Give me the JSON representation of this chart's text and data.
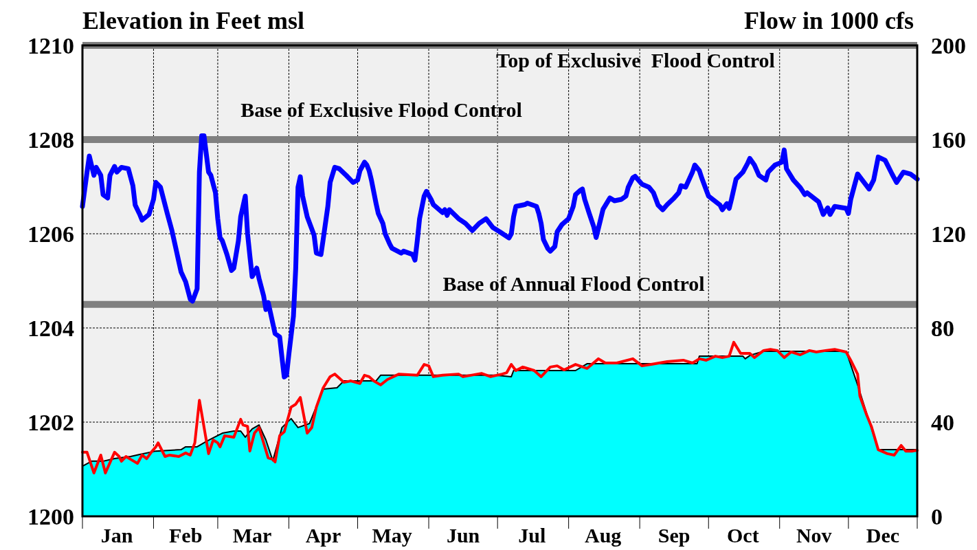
{
  "chart_data": {
    "type": "line",
    "ylabel": "Elevation in Feet msl",
    "y2label": "Flow in 1000 cfs",
    "xlim": [
      "--01-01",
      "--12-31"
    ],
    "xticks": [
      {
        "value": "--01-01",
        "label": null
      },
      {
        "value": "--01-16",
        "label": "Jan"
      },
      {
        "value": "--02-01",
        "label": null
      },
      {
        "value": "--02-15",
        "label": "Feb"
      },
      {
        "value": "--03-01",
        "label": null
      },
      {
        "value": "--03-16",
        "label": "Mar"
      },
      {
        "value": "--04-01",
        "label": null
      },
      {
        "value": "--04-16",
        "label": "Apr"
      },
      {
        "value": "--05-01",
        "label": null
      },
      {
        "value": "--05-16",
        "label": "May"
      },
      {
        "value": "--06-01",
        "label": null
      },
      {
        "value": "--06-16",
        "label": "Jun"
      },
      {
        "value": "--07-01",
        "label": null
      },
      {
        "value": "--07-16",
        "label": "Jul"
      },
      {
        "value": "--08-01",
        "label": null
      },
      {
        "value": "--08-16",
        "label": "Aug"
      },
      {
        "value": "--09-01",
        "label": null
      },
      {
        "value": "--09-16",
        "label": "Sep"
      },
      {
        "value": "--10-01",
        "label": null
      },
      {
        "value": "--10-16",
        "label": "Oct"
      },
      {
        "value": "--11-01",
        "label": null
      },
      {
        "value": "--11-16",
        "label": "Nov"
      },
      {
        "value": "--12-01",
        "label": null
      },
      {
        "value": "--12-16",
        "label": "Dec"
      },
      {
        "value": "--12-31",
        "label": null
      }
    ],
    "ylim": [
      1200,
      1210
    ],
    "yticks": [
      1200,
      1202,
      1204,
      1206,
      1208,
      1210
    ],
    "y2lim": [
      0,
      200
    ],
    "y2ticks": [
      0,
      40,
      80,
      120,
      160,
      200
    ],
    "grid": true,
    "ref_lines": [
      {
        "axis": "y",
        "value": 1210,
        "label": "Top of Exclusive  Flood Control",
        "color": "#808080"
      },
      {
        "axis": "y",
        "value": 1208,
        "label": "Base of Exclusive Flood Control",
        "color": "#808080"
      },
      {
        "axis": "y",
        "value": 1204.5,
        "label": "Base of Annual Flood Control",
        "color": "#808080"
      }
    ],
    "series": [
      {
        "type": "area",
        "axis": "y2",
        "color": "#00ffff",
        "x": [
          "--01-01",
          "--01-05",
          "--01-10",
          "--01-15",
          "--01-22",
          "--01-26",
          "--02-02",
          "--02-13",
          "--02-15",
          "--02-20",
          "--02-24",
          "--02-27",
          "--03-03",
          "--03-08",
          "--03-11",
          "--03-13",
          "--03-16",
          "--03-19",
          "--03-22",
          "--03-25",
          "--03-29",
          "--04-02",
          "--04-05",
          "--04-10",
          "--04-16",
          "--04-22",
          "--04-25",
          "--05-09",
          "--05-11",
          "--06-03",
          "--06-30",
          "--07-07",
          "--07-08",
          "--08-04",
          "--08-09",
          "--09-26",
          "--09-27",
          "--10-16",
          "--10-17",
          "--10-19",
          "--10-25",
          "--11-30",
          "--12-05",
          "--12-14",
          "--12-31"
        ],
        "values": [
          21.3,
          23.4,
          23.4,
          24.5,
          25.4,
          26.3,
          27.7,
          28.3,
          29.5,
          29.5,
          31.8,
          33.3,
          35.3,
          36.2,
          36.2,
          33.6,
          37.1,
          38.8,
          32.4,
          23.6,
          37.7,
          41.5,
          37.7,
          39.4,
          54.0,
          54.6,
          57.5,
          57.5,
          59.9,
          59.9,
          59.9,
          59.3,
          61.9,
          61.9,
          64.8,
          64.8,
          68.0,
          68.0,
          66.9,
          68.3,
          70.1,
          70.1,
          55.8,
          28.3,
          28.3
        ]
      },
      {
        "axis": "y2",
        "color": "#ff0000",
        "x": [
          "--01-01",
          "--01-03",
          "--01-06",
          "--01-09",
          "--01-11",
          "--01-15",
          "--01-17",
          "--01-18",
          "--01-20",
          "--01-22",
          "--01-25",
          "--01-27",
          "--01-29",
          "--01-31",
          "--02-02",
          "--02-03",
          "--02-06",
          "--02-08",
          "--02-12",
          "--02-15",
          "--02-17",
          "--02-19",
          "--02-21",
          "--02-25",
          "--02-27",
          "--03-01",
          "--03-02",
          "--03-04",
          "--03-08",
          "--03-11",
          "--03-12",
          "--03-14",
          "--03-15",
          "--03-17",
          "--03-19",
          "--03-21",
          "--03-23",
          "--03-25",
          "--03-26",
          "--03-28",
          "--03-30",
          "--04-02",
          "--04-04",
          "--04-06",
          "--04-09",
          "--04-11",
          "--04-13",
          "--04-16",
          "--04-19",
          "--04-21",
          "--04-23",
          "--04-25",
          "--04-28",
          "--05-02",
          "--05-04",
          "--05-06",
          "--05-08",
          "--05-11",
          "--05-14",
          "--05-19",
          "--05-27",
          "--05-30",
          "--06-01",
          "--06-03",
          "--06-07",
          "--06-14",
          "--06-16",
          "--06-24",
          "--06-28",
          "--07-03",
          "--07-05",
          "--07-07",
          "--07-09",
          "--07-12",
          "--07-17",
          "--07-20",
          "--07-24",
          "--07-27",
          "--07-30",
          "--08-04",
          "--08-09",
          "--08-14",
          "--08-17",
          "--08-22",
          "--08-29",
          "--09-02",
          "--09-06",
          "--09-13",
          "--09-20",
          "--09-24",
          "--09-27",
          "--09-30",
          "--10-04",
          "--10-07",
          "--10-10",
          "--10-12",
          "--10-15",
          "--10-19",
          "--10-21",
          "--10-25",
          "--10-28",
          "--10-31",
          "--11-03",
          "--11-06",
          "--11-10",
          "--11-14",
          "--11-17",
          "--11-21",
          "--11-25",
          "--11-30",
          "--12-02",
          "--12-05",
          "--12-06",
          "--12-09",
          "--12-11",
          "--12-14",
          "--12-18",
          "--12-21",
          "--12-24",
          "--12-26",
          "--12-29",
          "--12-31"
        ],
        "values": [
          27.2,
          27.2,
          18.4,
          26.0,
          18.4,
          27.2,
          25.4,
          23.4,
          25.4,
          24.2,
          22.5,
          26.0,
          24.5,
          27.2,
          29.5,
          31.2,
          25.4,
          26.0,
          25.4,
          26.9,
          26.0,
          31.2,
          49.3,
          26.6,
          32.4,
          31.2,
          29.5,
          34.2,
          33.6,
          41.2,
          38.8,
          38.2,
          27.7,
          35.3,
          37.7,
          31.2,
          24.8,
          24.2,
          23.1,
          34.2,
          35.9,
          46.4,
          47.6,
          50.5,
          35.3,
          37.7,
          46.4,
          54.6,
          59.3,
          60.4,
          58.7,
          56.9,
          57.5,
          56.4,
          59.9,
          59.3,
          57.5,
          55.8,
          58.1,
          60.4,
          59.9,
          64.5,
          63.9,
          59.3,
          59.9,
          60.4,
          59.3,
          60.7,
          59.3,
          60.4,
          61.0,
          64.5,
          61.9,
          63.4,
          61.9,
          59.3,
          63.4,
          63.9,
          62.2,
          64.5,
          62.8,
          66.9,
          65.1,
          65.1,
          66.9,
          63.9,
          64.5,
          65.7,
          66.3,
          65.1,
          66.9,
          66.3,
          68.0,
          67.4,
          68.0,
          73.9,
          69.2,
          69.2,
          67.4,
          70.4,
          70.9,
          70.4,
          67.4,
          69.8,
          68.6,
          70.4,
          69.8,
          70.4,
          70.9,
          69.8,
          66.3,
          60.4,
          51.1,
          42.9,
          38.2,
          28.3,
          26.6,
          26.0,
          30.1,
          27.7,
          27.7,
          28.0
        ]
      },
      {
        "axis": "y",
        "color": "#0000ff",
        "x": [
          "--01-01",
          "--01-03",
          "--01-04",
          "--01-06",
          "--01-07",
          "--01-09",
          "--01-10",
          "--01-12",
          "--01-13",
          "--01-15",
          "--01-16",
          "--01-18",
          "--01-21",
          "--01-23",
          "--01-24",
          "--01-26",
          "--01-27",
          "--01-30",
          "--02-01",
          "--02-02",
          "--02-04",
          "--02-07",
          "--02-09",
          "--02-11",
          "--02-13",
          "--02-15",
          "--02-17",
          "--02-18",
          "--02-20",
          "--02-21",
          "--02-22",
          "--02-23",
          "--02-25",
          "--02-26",
          "--02-28",
          "--03-01",
          "--03-02",
          "--03-03",
          "--03-05",
          "--03-07",
          "--03-08",
          "--03-10",
          "--03-11",
          "--03-13",
          "--03-14",
          "--03-15",
          "--03-16",
          "--03-18",
          "--03-19",
          "--03-21",
          "--03-22",
          "--03-23",
          "--03-25",
          "--03-26",
          "--03-28",
          "--03-29",
          "--03-30",
          "--03-31",
          "--04-01",
          "--04-03",
          "--04-04",
          "--04-05",
          "--04-06",
          "--04-07",
          "--04-09",
          "--04-12",
          "--04-13",
          "--04-15",
          "--04-16",
          "--04-18",
          "--04-19",
          "--04-21",
          "--04-23",
          "--04-26",
          "--04-29",
          "--05-01",
          "--05-02",
          "--05-04",
          "--05-05",
          "--05-06",
          "--05-07",
          "--05-09",
          "--05-10",
          "--05-12",
          "--05-13",
          "--05-15",
          "--05-16",
          "--05-20",
          "--05-21",
          "--05-25",
          "--05-26",
          "--05-27",
          "--05-28",
          "--05-30",
          "--05-31",
          "--06-02",
          "--06-03",
          "--06-07",
          "--06-08",
          "--06-09",
          "--06-10",
          "--06-14",
          "--06-17",
          "--06-20",
          "--06-23",
          "--06-26",
          "--06-29",
          "--07-02",
          "--07-06",
          "--07-07",
          "--07-08",
          "--07-09",
          "--07-13",
          "--07-14",
          "--07-18",
          "--07-19",
          "--07-20",
          "--07-21",
          "--07-23",
          "--07-24",
          "--07-26",
          "--07-27",
          "--07-29",
          "--08-01",
          "--08-03",
          "--08-04",
          "--08-06",
          "--08-07",
          "--08-08",
          "--08-10",
          "--08-12",
          "--08-13",
          "--08-15",
          "--08-16",
          "--08-19",
          "--08-21",
          "--08-24",
          "--08-26",
          "--08-27",
          "--08-29",
          "--08-30",
          "--09-02",
          "--09-05",
          "--09-07",
          "--09-09",
          "--09-11",
          "--09-13",
          "--09-16",
          "--09-18",
          "--09-19",
          "--09-21",
          "--09-24",
          "--09-25",
          "--09-27",
          "--09-28",
          "--10-01",
          "--10-06",
          "--10-07",
          "--10-09",
          "--10-10",
          "--10-11",
          "--10-13",
          "--10-16",
          "--10-18",
          "--10-19",
          "--10-21",
          "--10-23",
          "--10-26",
          "--10-27",
          "--10-30",
          "--11-02",
          "--11-03",
          "--11-04",
          "--11-07",
          "--11-10",
          "--11-12",
          "--11-13",
          "--11-18",
          "--11-20",
          "--11-22",
          "--11-23",
          "--11-25",
          "--11-30",
          "--12-01",
          "--12-02",
          "--12-05",
          "--12-08",
          "--12-10",
          "--12-12",
          "--12-14",
          "--12-17",
          "--12-20",
          "--12-22",
          "--12-25",
          "--12-28",
          "--12-31"
        ],
        "values": [
          1206.58,
          1207.31,
          1207.65,
          1207.24,
          1207.41,
          1207.24,
          1206.83,
          1206.76,
          1207.24,
          1207.43,
          1207.31,
          1207.41,
          1207.38,
          1207.02,
          1206.61,
          1206.41,
          1206.29,
          1206.41,
          1206.73,
          1207.09,
          1206.99,
          1206.43,
          1206.07,
          1205.63,
          1205.19,
          1204.98,
          1204.61,
          1204.57,
          1204.83,
          1207.31,
          1208.08,
          1208.08,
          1207.31,
          1207.24,
          1206.87,
          1206.32,
          1205.92,
          1205.85,
          1205.56,
          1205.22,
          1205.27,
          1205.85,
          1206.36,
          1206.8,
          1206.0,
          1205.53,
          1205.09,
          1205.27,
          1205.05,
          1204.68,
          1204.39,
          1204.54,
          1204.1,
          1203.88,
          1203.81,
          1203.37,
          1202.96,
          1203.0,
          1203.44,
          1204.25,
          1205.27,
          1206.99,
          1207.21,
          1206.8,
          1206.36,
          1205.97,
          1205.59,
          1205.56,
          1205.89,
          1206.58,
          1207.09,
          1207.41,
          1207.38,
          1207.24,
          1207.09,
          1207.14,
          1207.34,
          1207.52,
          1207.46,
          1207.34,
          1207.14,
          1206.65,
          1206.43,
          1206.22,
          1206.0,
          1205.78,
          1205.69,
          1205.59,
          1205.63,
          1205.56,
          1205.44,
          1205.85,
          1206.32,
          1206.8,
          1206.9,
          1206.73,
          1206.62,
          1206.45,
          1206.51,
          1206.39,
          1206.51,
          1206.32,
          1206.22,
          1206.07,
          1206.22,
          1206.32,
          1206.13,
          1206.04,
          1205.91,
          1206.0,
          1206.36,
          1206.58,
          1206.62,
          1206.65,
          1206.58,
          1206.43,
          1206.22,
          1205.88,
          1205.68,
          1205.63,
          1205.73,
          1206.04,
          1206.19,
          1206.32,
          1206.58,
          1206.83,
          1206.92,
          1206.95,
          1206.73,
          1206.43,
          1206.14,
          1205.92,
          1206.32,
          1206.52,
          1206.76,
          1206.7,
          1206.73,
          1206.8,
          1206.99,
          1207.19,
          1207.22,
          1207.05,
          1206.99,
          1206.87,
          1206.61,
          1206.51,
          1206.62,
          1206.76,
          1206.87,
          1207.02,
          1206.99,
          1207.31,
          1207.46,
          1207.34,
          1207.19,
          1206.8,
          1206.61,
          1206.51,
          1206.64,
          1206.54,
          1206.73,
          1207.16,
          1207.31,
          1207.49,
          1207.6,
          1207.46,
          1207.24,
          1207.14,
          1207.31,
          1207.46,
          1207.52,
          1207.78,
          1207.38,
          1207.14,
          1206.98,
          1206.83,
          1206.87,
          1206.68,
          1206.41,
          1206.55,
          1206.41,
          1206.58,
          1206.54,
          1206.43,
          1206.73,
          1207.27,
          1207.08,
          1206.95,
          1207.14,
          1207.63,
          1207.56,
          1207.27,
          1207.09,
          1207.31,
          1207.27,
          1207.16
        ]
      }
    ]
  }
}
